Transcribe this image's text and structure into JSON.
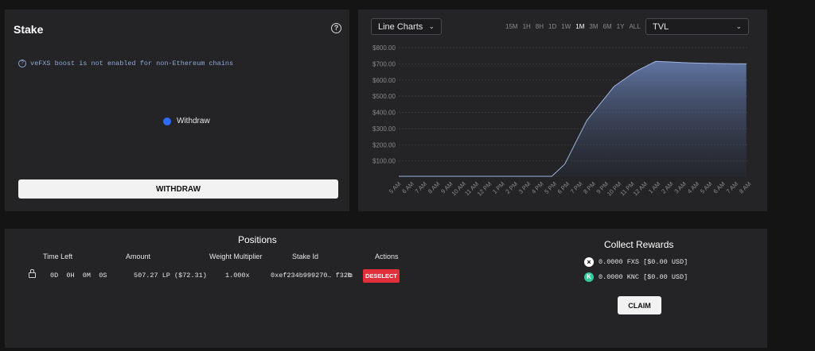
{
  "stake": {
    "title": "Stake",
    "notice": "veFXS boost is not enabled for non-Ethereum chains",
    "radio_label": "Withdraw",
    "withdraw_button": "WITHDRAW"
  },
  "chart_controls": {
    "chart_type": "Line Charts",
    "metric": "TVL",
    "ranges": [
      "15M",
      "1H",
      "8H",
      "1D",
      "1W",
      "1M",
      "3M",
      "6M",
      "1Y",
      "ALL"
    ],
    "active_range": "1M"
  },
  "chart_data": {
    "type": "area",
    "xlabel": "",
    "ylabel": "",
    "y_ticks": [
      "$800.00",
      "$700.00",
      "$600.00",
      "$500.00",
      "$400.00",
      "$300.00",
      "$200.00",
      "$100.00"
    ],
    "ylim": [
      0,
      800
    ],
    "categories": [
      "5 AM",
      "6 AM",
      "7 AM",
      "8 AM",
      "9 AM",
      "10 AM",
      "11 AM",
      "12 PM",
      "1 PM",
      "2 PM",
      "3 PM",
      "4 PM",
      "5 PM",
      "6 PM",
      "7 PM",
      "8 PM",
      "9 PM",
      "10 PM",
      "11 PM",
      "12 AM",
      "1 AM",
      "2 AM",
      "3 AM",
      "4 AM",
      "5 AM",
      "6 AM",
      "7 AM",
      "8 AM"
    ],
    "x": [
      0,
      1,
      2,
      3,
      4,
      5,
      6,
      7,
      8,
      9,
      10,
      11,
      11.8,
      12.8,
      14.5,
      16.6,
      18.2,
      19.8,
      20.8,
      21.8,
      22.8,
      23.8,
      24.8,
      25.8,
      26.8
    ],
    "values": [
      5,
      5,
      5,
      5,
      5,
      5,
      5,
      5,
      5,
      5,
      5,
      5,
      5,
      80,
      350,
      560,
      650,
      715,
      712,
      708,
      705,
      703,
      702,
      701,
      700
    ],
    "grid": true,
    "fill_color": "#6a83b8",
    "line_color": "#9fb3e0"
  },
  "positions": {
    "title": "Positions",
    "headers": [
      "Time Left",
      "Amount",
      "Weight Multiplier",
      "Stake Id",
      "Actions"
    ],
    "row": {
      "time_left": "0D  0H  0M  0S",
      "amount": "507.27 LP ($72.31)",
      "weight": "1.000x",
      "stake_id": "0xef234b999270… f32b",
      "action": "DESELECT"
    }
  },
  "rewards": {
    "title": "Collect Rewards",
    "fxs": "0.0000 FXS [$0.00 USD]",
    "knc": "0.0000 KNC [$0.00 USD]",
    "claim_button": "CLAIM"
  }
}
